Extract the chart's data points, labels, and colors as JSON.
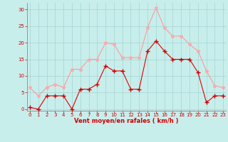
{
  "x": [
    0,
    1,
    2,
    3,
    4,
    5,
    6,
    7,
    8,
    9,
    10,
    11,
    12,
    13,
    14,
    15,
    16,
    17,
    18,
    19,
    20,
    21,
    22,
    23
  ],
  "y_moyen": [
    0.5,
    0,
    4,
    4,
    4,
    0,
    6,
    6,
    7.5,
    13,
    11.5,
    11.5,
    6,
    6,
    17.5,
    20.5,
    17.5,
    15,
    15,
    15,
    11,
    2,
    4,
    4
  ],
  "y_rafales": [
    6.5,
    4,
    6.5,
    7.5,
    6.5,
    12,
    12,
    15,
    15,
    20,
    19.5,
    15.5,
    15.5,
    15.5,
    24.5,
    30.5,
    24.5,
    22,
    22,
    19.5,
    17.5,
    11.5,
    7,
    6.5
  ],
  "bg_color": "#c8eeec",
  "grid_color": "#a8d8d6",
  "line_color_moyen": "#dd0000",
  "line_color_rafales": "#ff9999",
  "marker_color_moyen": "#cc0000",
  "marker_color_rafales": "#ffaaaa",
  "tick_color": "#cc0000",
  "xlabel": "Vent moyen/en rafales ( km/h )",
  "xlabel_color": "#cc0000",
  "yticks": [
    0,
    5,
    10,
    15,
    20,
    25,
    30
  ],
  "xticks": [
    0,
    1,
    2,
    3,
    4,
    5,
    6,
    7,
    8,
    9,
    10,
    11,
    12,
    13,
    14,
    15,
    16,
    17,
    18,
    19,
    20,
    21,
    22,
    23
  ],
  "ylim": [
    -0.5,
    32
  ],
  "xlim": [
    -0.3,
    23.3
  ]
}
